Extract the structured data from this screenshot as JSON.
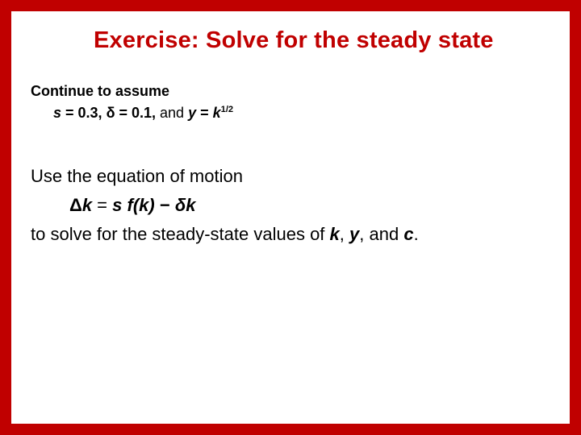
{
  "colors": {
    "border": "#c00000",
    "title": "#c00000",
    "text": "#000000",
    "background": "#ffffff"
  },
  "typography": {
    "title_fontsize": 29,
    "assume_fontsize": 18,
    "body_fontsize": 22
  },
  "title": "Exercise:  Solve for the steady state",
  "assume": {
    "line1": "Continue to assume",
    "s_var": "s",
    "s_eq": " = 0.3,   ",
    "delta_var": "δ",
    "delta_eq": " = 0.1,",
    "and": "  and  ",
    "y_var": "y",
    "y_eq": " = ",
    "k_var": "k",
    "exp": "1/2"
  },
  "body": {
    "line1": "Use the equation of motion",
    "eq_delta": "Δ",
    "eq_k": "k",
    "eq_equals": " = ",
    "eq_s": "s",
    "eq_space1": " ",
    "eq_fk": "f(k)",
    "eq_minus": " − ",
    "eq_deltak": "δk",
    "line3_a": "to solve for the steady-state values of ",
    "var_k": "k",
    "comma1": ", ",
    "var_y": "y",
    "comma2": ", and ",
    "var_c": "c",
    "period": "."
  }
}
